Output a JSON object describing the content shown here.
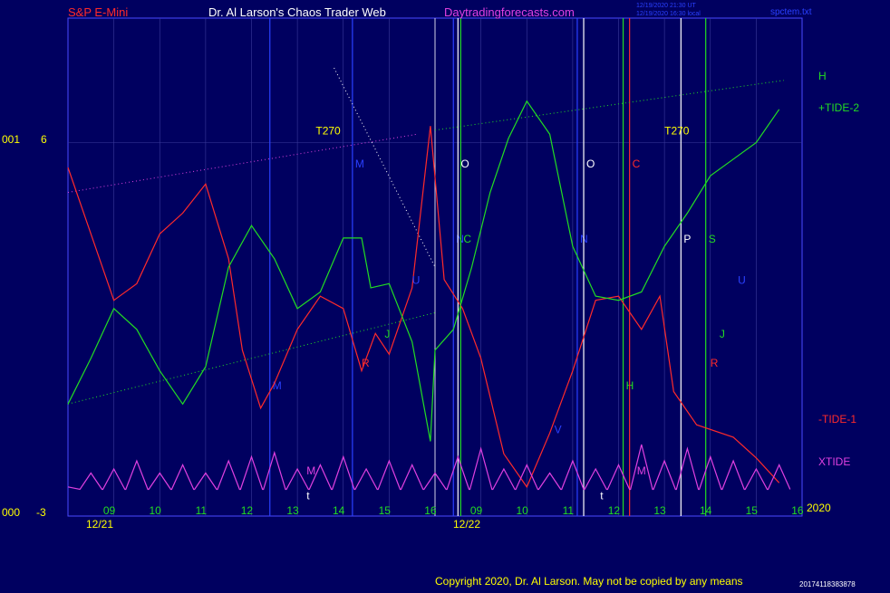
{
  "header": {
    "left_title": "S&P E-Mini",
    "center_title": "Dr. Al Larson's Chaos Trader Web",
    "site": "Daytradingforecasts.com",
    "timestamp_1": "12/19/2020 21:30 UT",
    "timestamp_2": "12/19/2020 16:30 local",
    "file": "spctem.txt"
  },
  "footer": {
    "copyright": "Copyright 2020, Dr. Al Larson. May not be copied by any means",
    "code": "20174118383878"
  },
  "colors": {
    "background": "#000060",
    "frame": "#4a4aff",
    "tide_plus": "#22dd22",
    "tide_minus": "#ff2a2a",
    "xtide": "#e040e0",
    "label_white": "#ffffff",
    "label_blue": "#2a40ff",
    "label_yellow": "#ffff00"
  },
  "chart_data": {
    "type": "line",
    "title": "S&P E-Mini",
    "left_axis": {
      "top_label_a": "001",
      "top_label_b": "6",
      "bottom_label_a": "000",
      "bottom_label_b": "-3"
    },
    "dates": [
      "12/21",
      "12/22"
    ],
    "hour_ticks": [
      "09",
      "10",
      "11",
      "12",
      "13",
      "14",
      "15",
      "16",
      "09",
      "10",
      "11",
      "12",
      "13",
      "14",
      "15",
      "16"
    ],
    "year_label": "2020",
    "series_labels": {
      "h": "H",
      "tide_plus": "+TIDE-2",
      "tide_minus": "-TIDE-1",
      "xtide": "XTIDE"
    },
    "tide_plus": [
      [
        0,
        -0.3
      ],
      [
        0.25,
        0.8
      ],
      [
        0.5,
        2.0
      ],
      [
        0.75,
        1.5
      ],
      [
        1.0,
        0.5
      ],
      [
        1.25,
        -0.3
      ],
      [
        1.5,
        0.6
      ],
      [
        1.75,
        3.0
      ],
      [
        2.0,
        4.0
      ],
      [
        2.25,
        3.2
      ],
      [
        2.5,
        2.0
      ],
      [
        2.75,
        2.4
      ],
      [
        3.0,
        3.7
      ],
      [
        3.2,
        3.7
      ],
      [
        3.3,
        2.5
      ],
      [
        3.5,
        2.6
      ],
      [
        3.75,
        1.2
      ],
      [
        3.95,
        -1.2
      ],
      [
        4.0,
        1.0
      ],
      [
        4.2,
        1.5
      ],
      [
        4.4,
        3.0
      ],
      [
        4.6,
        4.8
      ],
      [
        4.8,
        6.1
      ],
      [
        5.0,
        7.0
      ],
      [
        5.25,
        6.2
      ],
      [
        5.5,
        3.5
      ],
      [
        5.75,
        2.3
      ],
      [
        6.0,
        2.2
      ],
      [
        6.25,
        2.4
      ],
      [
        6.5,
        3.5
      ],
      [
        6.75,
        4.3
      ],
      [
        7.0,
        5.2
      ],
      [
        7.25,
        5.6
      ],
      [
        7.5,
        6.0
      ],
      [
        7.75,
        6.8
      ]
    ],
    "tide_minus": [
      [
        0,
        5.4
      ],
      [
        0.25,
        3.8
      ],
      [
        0.5,
        2.2
      ],
      [
        0.75,
        2.6
      ],
      [
        1.0,
        3.8
      ],
      [
        1.25,
        4.3
      ],
      [
        1.5,
        5.0
      ],
      [
        1.75,
        3.2
      ],
      [
        1.9,
        1.0
      ],
      [
        2.1,
        -0.4
      ],
      [
        2.25,
        0.2
      ],
      [
        2.5,
        1.5
      ],
      [
        2.75,
        2.3
      ],
      [
        3.0,
        2.0
      ],
      [
        3.2,
        0.5
      ],
      [
        3.35,
        1.4
      ],
      [
        3.5,
        0.9
      ],
      [
        3.75,
        2.5
      ],
      [
        3.95,
        6.4
      ],
      [
        4.1,
        2.7
      ],
      [
        4.3,
        2.0
      ],
      [
        4.5,
        0.8
      ],
      [
        4.75,
        -1.5
      ],
      [
        5.0,
        -2.3
      ],
      [
        5.25,
        -1.0
      ],
      [
        5.5,
        0.5
      ],
      [
        5.75,
        2.2
      ],
      [
        6.0,
        2.3
      ],
      [
        6.25,
        1.5
      ],
      [
        6.45,
        2.3
      ],
      [
        6.6,
        0.0
      ],
      [
        6.85,
        -0.8
      ],
      [
        7.25,
        -1.1
      ],
      [
        7.5,
        -1.6
      ],
      [
        7.75,
        -2.2
      ]
    ],
    "xtide_peaks": [
      [
        0.25,
        0.25
      ],
      [
        0.5,
        0.3
      ],
      [
        0.75,
        0.4
      ],
      [
        1.0,
        0.25
      ],
      [
        1.25,
        0.35
      ],
      [
        1.5,
        0.25
      ],
      [
        1.75,
        0.4
      ],
      [
        2.0,
        0.45
      ],
      [
        2.25,
        0.5
      ],
      [
        2.5,
        0.3
      ],
      [
        2.75,
        0.35
      ],
      [
        3.0,
        0.45
      ],
      [
        3.25,
        0.3
      ],
      [
        3.5,
        0.4
      ],
      [
        3.75,
        0.35
      ],
      [
        4.0,
        0.25
      ],
      [
        4.25,
        0.45
      ],
      [
        4.5,
        0.55
      ],
      [
        4.75,
        0.3
      ],
      [
        5.0,
        0.35
      ],
      [
        5.25,
        0.25
      ],
      [
        5.5,
        0.4
      ],
      [
        5.75,
        0.3
      ],
      [
        6.0,
        0.35
      ],
      [
        6.25,
        0.6
      ],
      [
        6.5,
        0.4
      ],
      [
        6.75,
        0.55
      ],
      [
        7.0,
        0.45
      ],
      [
        7.25,
        0.4
      ],
      [
        7.5,
        0.3
      ],
      [
        7.75,
        0.35
      ]
    ],
    "vertical_markers": [
      {
        "x": 2.2,
        "color": "#2a40ff",
        "label": "M",
        "label_y": "bottom"
      },
      {
        "x": 3.1,
        "color": "#2a40ff",
        "label": "M",
        "label_y": "top"
      },
      {
        "x": 4.2,
        "color": "#2a40ff",
        "label": "N",
        "label_y": "mid"
      },
      {
        "x": 4.25,
        "color": "#ffffff",
        "label": "O",
        "label_y": "top"
      },
      {
        "x": 4.28,
        "color": "#22dd22",
        "label": "C",
        "label_y": "mid"
      },
      {
        "x": 5.55,
        "color": "#2a40ff",
        "label": "N",
        "label_y": "mid"
      },
      {
        "x": 5.62,
        "color": "#ffffff",
        "label": "O",
        "label_y": "top"
      },
      {
        "x": 6.05,
        "color": "#22dd22",
        "label": "H",
        "label_y": "bottom"
      },
      {
        "x": 6.12,
        "color": "#ff2a2a",
        "label": "C",
        "label_y": "top"
      },
      {
        "x": 6.68,
        "color": "#ffffff",
        "label": "P",
        "label_y": "mid"
      },
      {
        "x": 6.95,
        "color": "#22dd22",
        "label": "S",
        "label_y": "mid"
      }
    ],
    "text_annotations": [
      {
        "text": "T270",
        "color": "#ffff00",
        "x": 2.7,
        "y": 6.2
      },
      {
        "text": "T270",
        "color": "#ffff00",
        "x": 6.5,
        "y": 6.2
      },
      {
        "text": "R",
        "color": "#ff2a2a",
        "x": 3.2,
        "y": 0.6
      },
      {
        "text": "J",
        "color": "#22dd22",
        "x": 3.45,
        "y": 1.3
      },
      {
        "text": "U",
        "color": "#2a40ff",
        "x": 3.75,
        "y": 2.6
      },
      {
        "text": "V",
        "color": "#2a40ff",
        "x": 5.3,
        "y": -1.0
      },
      {
        "text": "t",
        "color": "#ffffff",
        "x": 2.6,
        "y": -2.6
      },
      {
        "text": "t",
        "color": "#ffffff",
        "x": 5.8,
        "y": -2.6
      },
      {
        "text": "M",
        "color": "#e040e0",
        "x": 2.6,
        "y": -2.0
      },
      {
        "text": "M",
        "color": "#e040e0",
        "x": 6.2,
        "y": -2.0
      },
      {
        "text": "R",
        "color": "#ff2a2a",
        "x": 7.0,
        "y": 0.6
      },
      {
        "text": "J",
        "color": "#22dd22",
        "x": 7.1,
        "y": 1.3
      },
      {
        "text": "U",
        "color": "#2a40ff",
        "x": 7.3,
        "y": 2.6
      }
    ],
    "trend_lines": [
      {
        "points": [
          [
            0,
            4.8
          ],
          [
            3.8,
            6.2
          ]
        ],
        "color": "#e040e0"
      },
      {
        "points": [
          [
            0,
            -0.3
          ],
          [
            4.0,
            1.9
          ]
        ],
        "color": "#22dd22"
      },
      {
        "points": [
          [
            4.0,
            6.3
          ],
          [
            7.8,
            7.5
          ]
        ],
        "color": "#22dd22"
      },
      {
        "points": [
          [
            2.9,
            7.8
          ],
          [
            4.0,
            3.0
          ]
        ],
        "color": "#ffffff"
      }
    ]
  }
}
